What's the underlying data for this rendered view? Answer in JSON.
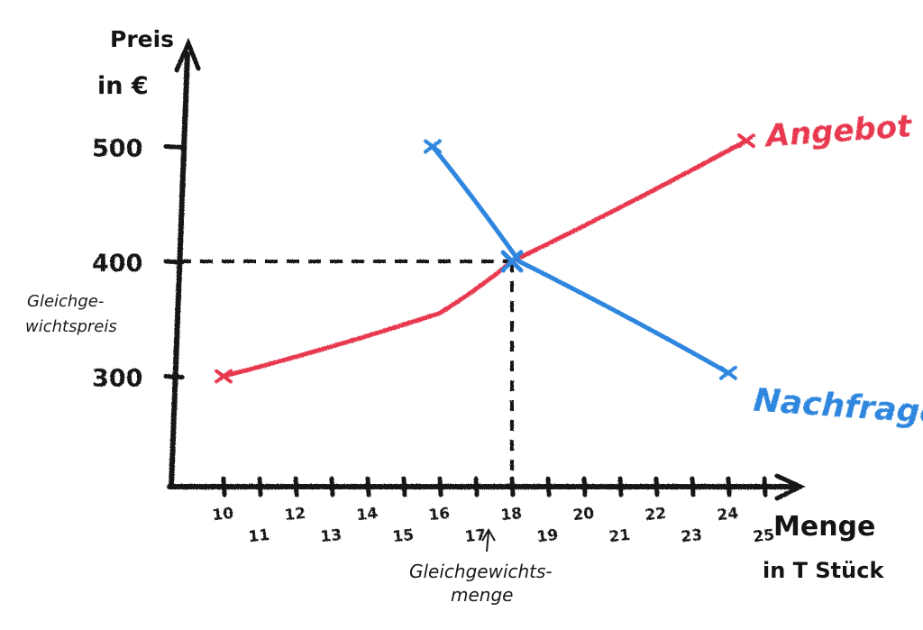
{
  "chart_data": {
    "type": "line",
    "ylabel_line1": "Preis",
    "ylabel_line2": "in €",
    "xlabel_line1": "Menge",
    "xlabel_line2": "in T Stück",
    "x_ticks": [
      10,
      11,
      12,
      13,
      14,
      15,
      16,
      17,
      18,
      19,
      20,
      21,
      22,
      23,
      24,
      25
    ],
    "y_ticks": [
      300,
      400,
      500
    ],
    "series": [
      {
        "name": "Angebot",
        "color": "#e8384f",
        "x": [
          10,
          16,
          18,
          24.5
        ],
        "y": [
          300,
          355,
          400,
          505
        ]
      },
      {
        "name": "Nachfrage",
        "color": "#2e86de",
        "x": [
          15.8,
          18.2,
          24
        ],
        "y": [
          500,
          400,
          303
        ]
      }
    ],
    "equilibrium": {
      "x": 18,
      "y": 400
    },
    "annotations": {
      "price_line1": "Gleichge-",
      "price_line2": "wichtspreis",
      "quantity_line1": "Gleichgewichts-",
      "quantity_line2": "menge"
    }
  }
}
